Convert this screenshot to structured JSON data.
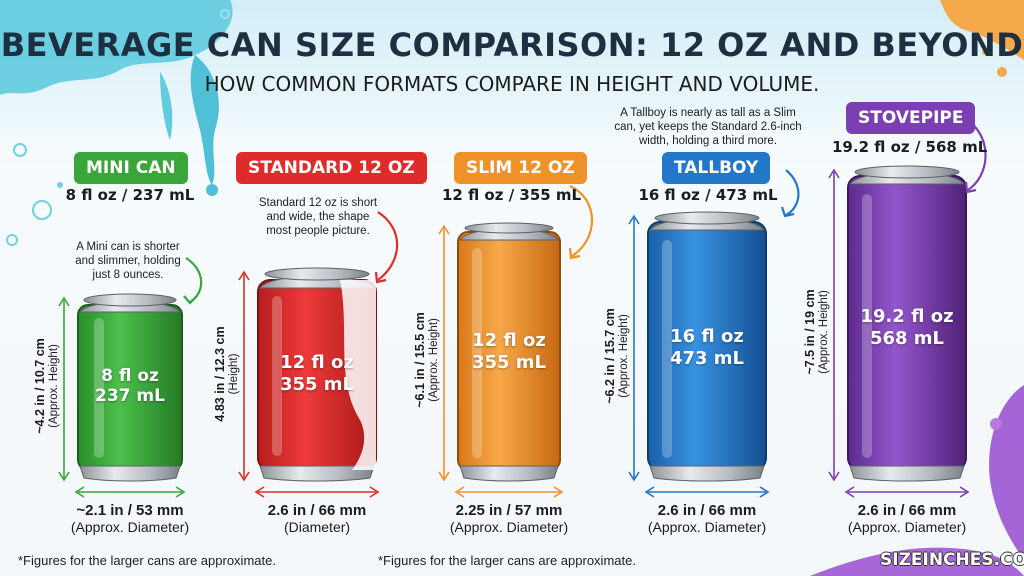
{
  "title": "BEVERAGE CAN SIZE COMPARISON: 12 OZ AND BEYOND",
  "subtitle": "HOW COMMON FORMATS COMPARE IN HEIGHT AND VOLUME.",
  "cans": [
    {
      "name": "MINI CAN",
      "color": "#3aa63a",
      "volume": "8 fl oz / 237 mL",
      "label_top": "8 fl oz",
      "label_bottom": "237 mL",
      "note": "A Mini can is shorter and slimmer, holding just 8 ounces.",
      "height_main": "~4.2 in / 10.7 cm",
      "height_sub": "(Approx. Height)",
      "diameter_main": "~2.1 in / 53 mm",
      "diameter_sub": "(Approx. Diameter)"
    },
    {
      "name": "STANDARD 12 OZ",
      "color": "#e02b2b",
      "volume": "12 fl oz / 355 mL",
      "label_top": "12 fl oz",
      "label_bottom": "355 mL",
      "note": "Standard 12 oz is short and wide, the shape most people picture.",
      "height_main": "4.83 in / 12.3 cm",
      "height_sub": "(Height)",
      "diameter_main": "2.6 in / 66 mm",
      "diameter_sub": "(Diameter)"
    },
    {
      "name": "SLIM 12 OZ",
      "color": "#f0922a",
      "volume": "12 fl oz / 355 mL",
      "label_top": "12 fl oz",
      "label_bottom": "355 mL",
      "note": "",
      "height_main": "~6.1 in / 15.5 cm",
      "height_sub": "(Approx. Height)",
      "diameter_main": "2.25 in / 57 mm",
      "diameter_sub": "(Approx. Diameter)"
    },
    {
      "name": "TALLBOY",
      "color": "#2277c8",
      "volume": "16 fl oz / 473 mL",
      "label_top": "16 fl oz",
      "label_bottom": "473 mL",
      "note": "A Tallboy is nearly as tall as a Slim can, yet keeps the Standard 2.6-inch width, holding a third more.",
      "height_main": "~6.2 in / 15.7 cm",
      "height_sub": "(Approx. Height)",
      "diameter_main": "2.6 in / 66 mm",
      "diameter_sub": "(Approx. Diameter)"
    },
    {
      "name": "STOVEPIPE",
      "color": "#7a3fb0",
      "volume": "19.2 fl oz / 568 mL",
      "label_top": "19.2 fl oz",
      "label_bottom": "568 mL",
      "note": "",
      "height_main": "~7.5 in / 19 cm",
      "height_sub": "(Approx. Height)",
      "diameter_main": "2.6 in / 66 mm",
      "diameter_sub": "(Approx. Diameter)"
    }
  ],
  "footnote_left": "*Figures for the larger cans are approximate.",
  "footnote_right": "*Figures for the larger cans are approximate.",
  "brand": "SIZEINCHES.COM"
}
